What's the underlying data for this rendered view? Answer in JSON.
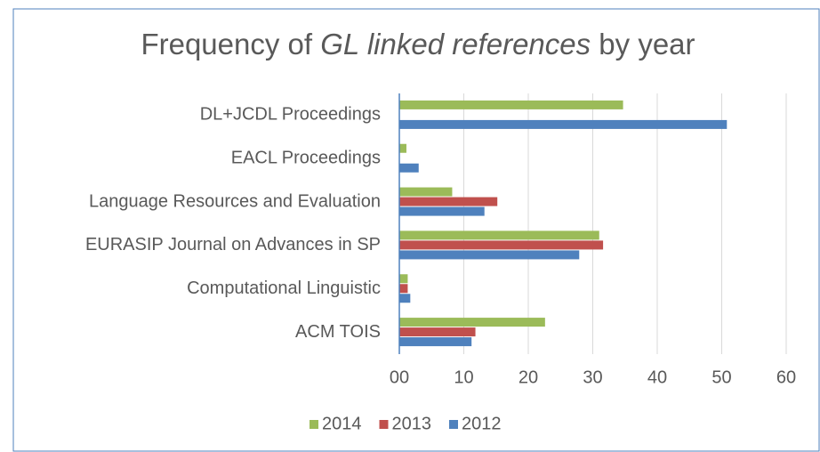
{
  "chart_data": {
    "type": "bar",
    "orientation": "horizontal",
    "title": [
      "Frequency of ",
      "GL linked references",
      " by year"
    ],
    "categories": [
      "DL+JCDL Proceedings",
      "EACL Proceedings",
      "Language Resources and Evaluation",
      "EURASIP Journal on Advances in SP",
      "Computational Linguistic",
      "ACM TOIS"
    ],
    "series": [
      {
        "name": "2014",
        "color": "#9bbb59",
        "values": [
          34.7,
          1.1,
          8.2,
          31,
          1.3,
          22.6
        ]
      },
      {
        "name": "2013",
        "color": "#c0504d",
        "values": [
          null,
          null,
          15.2,
          31.6,
          1.3,
          11.8
        ]
      },
      {
        "name": "2012",
        "color": "#4f81bd",
        "values": [
          50.8,
          3,
          13.2,
          27.9,
          1.7,
          11.2
        ]
      }
    ],
    "xlim": [
      0,
      60
    ],
    "xticks": [
      {
        "value": 0,
        "label": "00"
      },
      10,
      20,
      30,
      40,
      50,
      60
    ],
    "grid": true,
    "legend": "bottom"
  }
}
